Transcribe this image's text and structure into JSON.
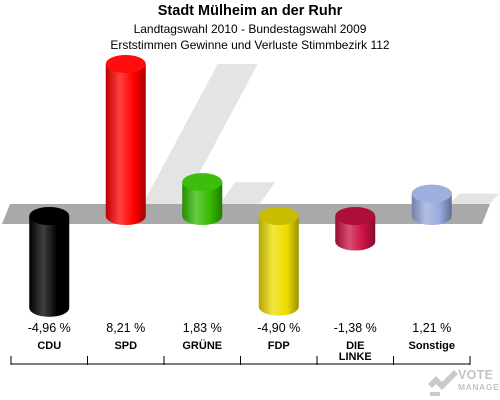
{
  "header": {
    "title": "Stadt Mülheim an der Ruhr",
    "subtitle1": "Landtagswahl 2010 - Bundestagswahl 2009",
    "subtitle2": "Erststimmen Gewinne und Verluste Stimmbezirk 112"
  },
  "chart_data": {
    "type": "bar",
    "categories": [
      "CDU",
      "SPD",
      "GRÜNE",
      "FDP",
      "DIE LINKE",
      "Sonstige"
    ],
    "values": [
      -4.96,
      8.21,
      1.83,
      -4.9,
      -1.38,
      1.21
    ],
    "value_labels": [
      "-4,96 %",
      "8,21 %",
      "1,83 %",
      "-4,90 %",
      "-1,38 %",
      "1,21 %"
    ],
    "colors": [
      "#000000",
      "#ff0000",
      "#33bb00",
      "#eedd00",
      "#cc1144",
      "#99aadd"
    ],
    "ylim": [
      -5,
      8.5
    ]
  },
  "logo": {
    "line1": "VOTE",
    "line2": "MANAGER"
  }
}
